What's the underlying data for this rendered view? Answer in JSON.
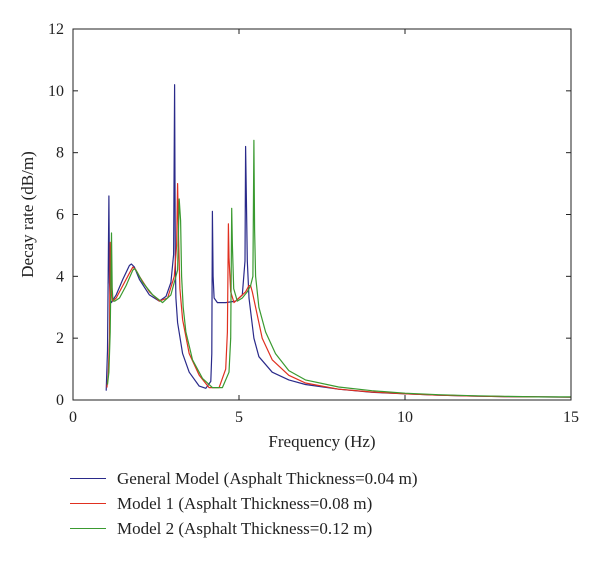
{
  "chart_data": {
    "type": "line",
    "title": "",
    "xlabel": "Frequency (Hz)",
    "ylabel": "Decay rate (dB/m)",
    "xlim": [
      0,
      15
    ],
    "ylim": [
      0,
      12
    ],
    "xticks": [
      "0",
      "5",
      "10",
      "15"
    ],
    "yticks": [
      "0",
      "2",
      "4",
      "6",
      "8",
      "10",
      "12"
    ],
    "grid": false,
    "legend_position": "below",
    "series": [
      {
        "name": "General Model (Asphalt Thickness=0.04 m)",
        "color": "#2a2a8a",
        "x": [
          1.0,
          1.04,
          1.08,
          1.1,
          1.12,
          1.14,
          1.16,
          1.18,
          1.3,
          1.5,
          1.7,
          1.76,
          1.85,
          2.0,
          2.3,
          2.6,
          2.8,
          2.95,
          3.03,
          3.06,
          3.08,
          3.1,
          3.15,
          3.3,
          3.5,
          3.8,
          4.0,
          4.15,
          4.18,
          4.2,
          4.22,
          4.25,
          4.35,
          4.6,
          4.9,
          5.1,
          5.18,
          5.2,
          5.22,
          5.25,
          5.3,
          5.45,
          5.6,
          6.0,
          6.5,
          7.0,
          8.0,
          9.0,
          10.0,
          11.0,
          12.0,
          13.0,
          14.0,
          15.0
        ],
        "y": [
          0.3,
          1.6,
          6.6,
          3.8,
          3.3,
          3.2,
          3.15,
          3.2,
          3.4,
          3.9,
          4.35,
          4.4,
          4.3,
          3.9,
          3.4,
          3.2,
          3.35,
          3.8,
          4.7,
          10.2,
          4.6,
          3.3,
          2.5,
          1.5,
          0.9,
          0.45,
          0.38,
          0.6,
          1.5,
          6.1,
          4.0,
          3.3,
          3.15,
          3.15,
          3.2,
          3.4,
          4.5,
          8.2,
          6.7,
          4.5,
          3.3,
          2.0,
          1.4,
          0.9,
          0.65,
          0.5,
          0.35,
          0.25,
          0.2,
          0.16,
          0.13,
          0.11,
          0.1,
          0.09
        ]
      },
      {
        "name": "Model 1 (Asphalt Thickness=0.08 m)",
        "color": "#e03020",
        "x": [
          1.02,
          1.06,
          1.1,
          1.12,
          1.14,
          1.16,
          1.18,
          1.2,
          1.3,
          1.5,
          1.7,
          1.8,
          1.9,
          2.0,
          2.3,
          2.6,
          2.85,
          3.05,
          3.12,
          3.15,
          3.18,
          3.22,
          3.3,
          3.5,
          3.8,
          4.1,
          4.4,
          4.6,
          4.65,
          4.68,
          4.7,
          4.75,
          4.85,
          5.0,
          5.2,
          5.3,
          5.35,
          5.4,
          5.5,
          5.7,
          6.0,
          6.5,
          7.0,
          8.0,
          9.0,
          10.0,
          11.0,
          12.0,
          13.0,
          14.0,
          15.0
        ],
        "y": [
          0.4,
          0.8,
          2.0,
          5.1,
          4.6,
          3.4,
          3.25,
          3.2,
          3.3,
          3.7,
          4.1,
          4.3,
          4.2,
          4.0,
          3.5,
          3.2,
          3.3,
          4.0,
          5.0,
          7.0,
          5.2,
          3.6,
          2.6,
          1.5,
          0.8,
          0.4,
          0.4,
          1.0,
          2.2,
          5.7,
          4.6,
          3.5,
          3.15,
          3.3,
          3.5,
          3.7,
          3.7,
          3.5,
          3.0,
          2.0,
          1.3,
          0.8,
          0.55,
          0.35,
          0.26,
          0.2,
          0.16,
          0.13,
          0.11,
          0.1,
          0.09
        ]
      },
      {
        "name": "Model 2 (Asphalt Thickness=0.12 m)",
        "color": "#3a9a30",
        "x": [
          1.04,
          1.08,
          1.12,
          1.16,
          1.18,
          1.2,
          1.22,
          1.26,
          1.4,
          1.6,
          1.8,
          1.86,
          1.95,
          2.1,
          2.4,
          2.7,
          2.95,
          3.15,
          3.2,
          3.24,
          3.27,
          3.32,
          3.4,
          3.6,
          3.9,
          4.2,
          4.5,
          4.7,
          4.75,
          4.78,
          4.8,
          4.84,
          4.95,
          5.1,
          5.25,
          5.35,
          5.42,
          5.45,
          5.47,
          5.5,
          5.6,
          5.8,
          6.1,
          6.5,
          7.0,
          8.0,
          9.0,
          10.0,
          11.0,
          12.0,
          13.0,
          14.0,
          15.0
        ],
        "y": [
          0.5,
          0.9,
          2.2,
          5.4,
          3.6,
          3.3,
          3.2,
          3.2,
          3.3,
          3.7,
          4.2,
          4.25,
          4.1,
          3.8,
          3.4,
          3.15,
          3.4,
          4.2,
          6.5,
          5.8,
          4.0,
          3.0,
          2.2,
          1.3,
          0.7,
          0.4,
          0.4,
          0.9,
          2.0,
          6.2,
          5.0,
          3.6,
          3.2,
          3.3,
          3.5,
          3.7,
          4.0,
          8.4,
          5.5,
          4.0,
          3.0,
          2.2,
          1.5,
          0.95,
          0.65,
          0.42,
          0.3,
          0.22,
          0.17,
          0.14,
          0.12,
          0.1,
          0.1
        ]
      }
    ]
  }
}
